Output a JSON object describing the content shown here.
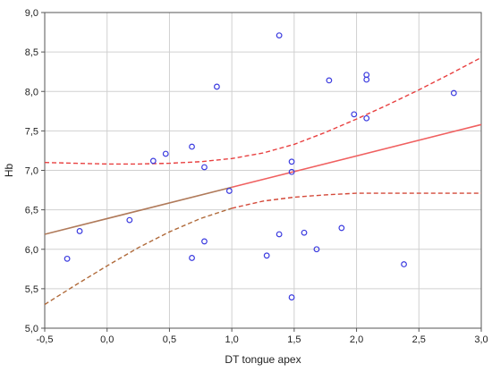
{
  "chart_data": {
    "type": "scatter",
    "title": "",
    "xlabel": "DT  tongue apex",
    "ylabel": "Hb",
    "xlim": [
      -0.5,
      3.0
    ],
    "ylim": [
      5.0,
      9.0
    ],
    "xticks": [
      "-0,5",
      "0,0",
      "0,5",
      "1,0",
      "1,5",
      "2,0",
      "2,5",
      "3,0"
    ],
    "yticks": [
      "5,0",
      "5,5",
      "6,0",
      "6,5",
      "7,0",
      "7,5",
      "8,0",
      "8,5",
      "9,0"
    ],
    "grid": true,
    "points": [
      {
        "x": -0.32,
        "y": 5.88
      },
      {
        "x": -0.22,
        "y": 6.23
      },
      {
        "x": 0.18,
        "y": 6.37
      },
      {
        "x": 0.37,
        "y": 7.12
      },
      {
        "x": 0.47,
        "y": 7.21
      },
      {
        "x": 0.68,
        "y": 7.3
      },
      {
        "x": 0.68,
        "y": 5.89
      },
      {
        "x": 0.78,
        "y": 7.04
      },
      {
        "x": 0.78,
        "y": 6.1
      },
      {
        "x": 0.88,
        "y": 8.06
      },
      {
        "x": 0.98,
        "y": 6.74
      },
      {
        "x": 1.28,
        "y": 5.92
      },
      {
        "x": 1.38,
        "y": 8.71
      },
      {
        "x": 1.38,
        "y": 6.19
      },
      {
        "x": 1.48,
        "y": 7.11
      },
      {
        "x": 1.48,
        "y": 6.98
      },
      {
        "x": 1.48,
        "y": 5.39
      },
      {
        "x": 1.58,
        "y": 6.21
      },
      {
        "x": 1.68,
        "y": 6.0
      },
      {
        "x": 1.78,
        "y": 8.14
      },
      {
        "x": 1.88,
        "y": 6.27
      },
      {
        "x": 1.98,
        "y": 7.71
      },
      {
        "x": 2.08,
        "y": 8.21
      },
      {
        "x": 2.08,
        "y": 8.15
      },
      {
        "x": 2.08,
        "y": 7.66
      },
      {
        "x": 2.38,
        "y": 5.81
      },
      {
        "x": 2.78,
        "y": 7.98
      }
    ],
    "regression": {
      "x": [
        -0.5,
        3.0
      ],
      "y": [
        6.19,
        7.58
      ]
    },
    "confidence_upper": {
      "x": [
        -0.5,
        -0.25,
        0.0,
        0.25,
        0.5,
        0.75,
        1.0,
        1.25,
        1.5,
        1.75,
        2.0,
        2.25,
        2.5,
        2.75,
        3.0
      ],
      "y": [
        7.1,
        7.09,
        7.08,
        7.08,
        7.09,
        7.11,
        7.15,
        7.22,
        7.33,
        7.48,
        7.65,
        7.83,
        8.02,
        8.22,
        8.43
      ]
    },
    "confidence_lower": {
      "x": [
        -0.5,
        -0.25,
        0.0,
        0.25,
        0.5,
        0.75,
        1.0,
        1.25,
        1.5,
        1.75,
        2.0,
        2.25,
        2.5,
        2.75,
        3.0
      ],
      "y": [
        5.3,
        5.55,
        5.79,
        6.02,
        6.22,
        6.39,
        6.52,
        6.61,
        6.66,
        6.69,
        6.71,
        6.71,
        6.71,
        6.71,
        6.71
      ]
    },
    "colors": {
      "points": "#3a3adf",
      "fit_line_left": "#b07a5a",
      "fit_line_right": "#f06060",
      "band_upper": "#e84040",
      "band_lower_left": "#b06a3a",
      "band_lower_right": "#d44a3a",
      "grid": "#d0d0d0"
    }
  }
}
